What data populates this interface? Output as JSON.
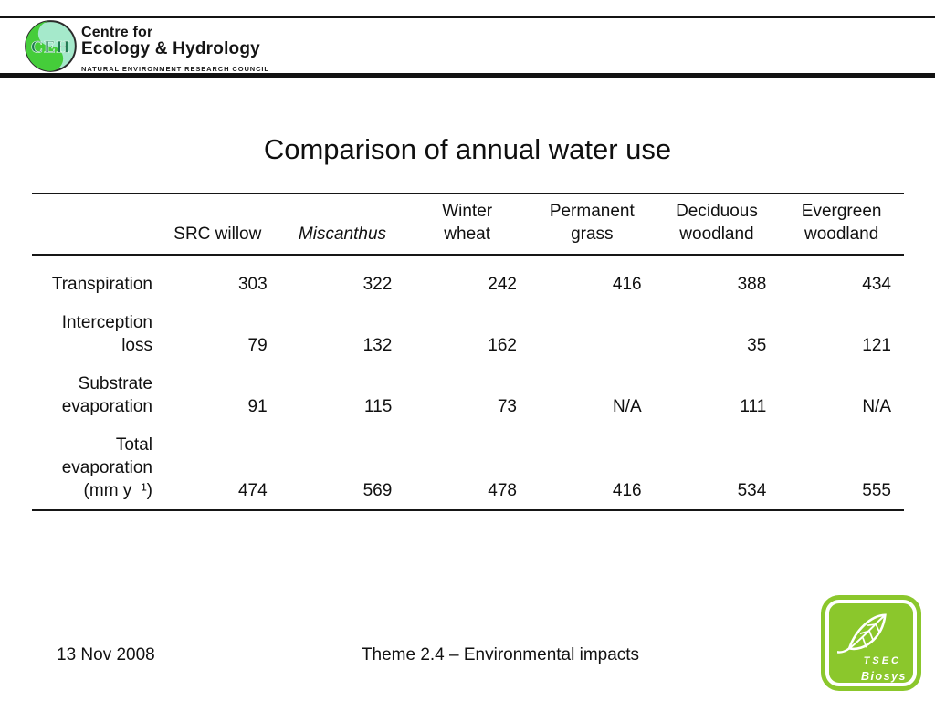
{
  "brand": {
    "logo_text": "CEH",
    "line1": "Centre for",
    "line2": "Ecology & Hydrology",
    "subtitle": "NATURAL ENVIRONMENT RESEARCH COUNCIL"
  },
  "title": "Comparison of annual water use",
  "table": {
    "columns": [
      {
        "label": "SRC willow"
      },
      {
        "label": "Miscanthus",
        "italic": true
      },
      {
        "label": "Winter\nwheat"
      },
      {
        "label": "Permanent\ngrass"
      },
      {
        "label": "Deciduous\nwoodland"
      },
      {
        "label": "Evergreen\nwoodland"
      }
    ],
    "rows": [
      {
        "label": "Transpiration",
        "values": [
          "303",
          "322",
          "242",
          "416",
          "388",
          "434"
        ]
      },
      {
        "label": "Interception\nloss",
        "values": [
          "79",
          "132",
          "162",
          "",
          "35",
          "121"
        ]
      },
      {
        "label": "Substrate\nevaporation",
        "values": [
          "91",
          "115",
          "73",
          "N/A",
          "111",
          "N/A"
        ]
      },
      {
        "label": "Total\nevaporation\n(mm y⁻¹)",
        "values": [
          "474",
          "569",
          "478",
          "416",
          "534",
          "555"
        ]
      }
    ]
  },
  "footer": {
    "date": "13 Nov 2008",
    "theme": "Theme 2.4 – Environmental impacts"
  },
  "badge": {
    "line1": "TSEC",
    "line2": "Biosys"
  },
  "colors": {
    "badge_green": "#8bc72c",
    "ceh_green": "#45cd3a",
    "ceh_mint": "#a5e9cb",
    "ceh_letters": "#1f7a52"
  }
}
